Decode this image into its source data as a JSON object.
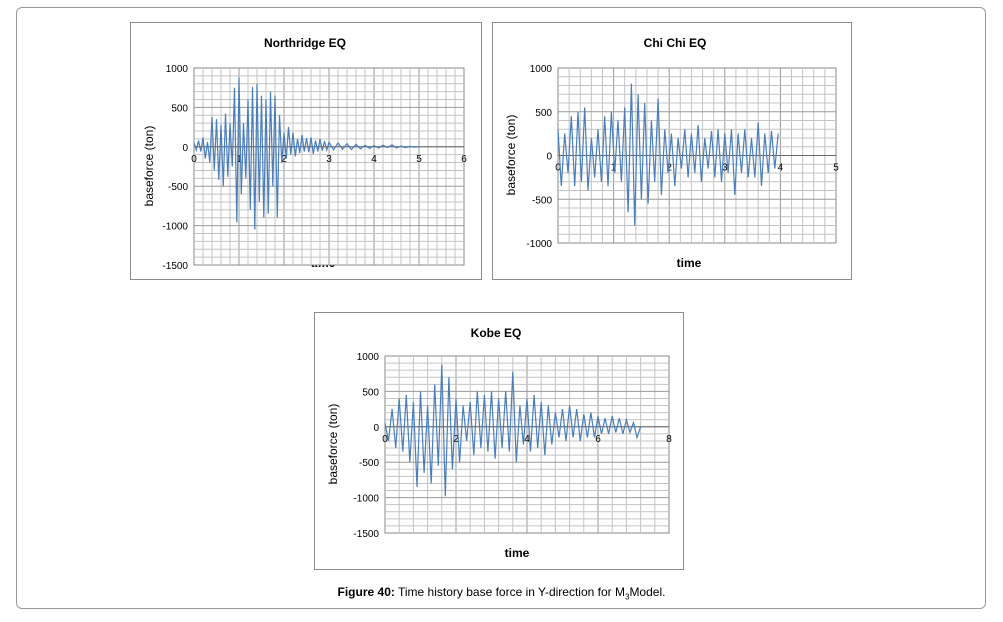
{
  "chart_data": [
    {
      "type": "line",
      "title": "Northridge EQ",
      "xlabel": "time",
      "ylabel": "baseforce (ton)",
      "xlim": [
        0,
        6
      ],
      "ylim": [
        -1500,
        1000
      ],
      "xticks": [
        0,
        1,
        2,
        3,
        4,
        5,
        6
      ],
      "yticks": [
        1000,
        500,
        0,
        -500,
        -1000,
        -1500
      ],
      "grid": true,
      "color": "#4a7ebb",
      "series": [
        {
          "x": [
            0.0,
            0.05,
            0.1,
            0.15,
            0.2,
            0.25,
            0.3,
            0.35,
            0.4,
            0.45,
            0.5,
            0.55,
            0.6,
            0.65,
            0.7,
            0.75,
            0.8,
            0.85,
            0.9,
            0.95,
            1.0,
            1.05,
            1.1,
            1.15,
            1.2,
            1.25,
            1.3,
            1.35,
            1.4,
            1.45,
            1.5,
            1.55,
            1.6,
            1.65,
            1.7,
            1.75,
            1.8,
            1.85,
            1.9,
            1.95,
            2.0,
            2.05,
            2.1,
            2.15,
            2.2,
            2.25,
            2.3,
            2.35,
            2.4,
            2.45,
            2.5,
            2.55,
            2.6,
            2.65,
            2.7,
            2.75,
            2.8,
            2.85,
            2.9,
            2.95,
            3.0,
            3.1,
            3.2,
            3.3,
            3.4,
            3.5,
            3.6,
            3.7,
            3.8,
            3.9,
            4.0,
            4.1,
            4.2,
            4.3,
            4.4,
            4.5,
            4.6,
            4.7,
            4.8,
            4.9,
            5.0
          ],
          "values": [
            50,
            -40,
            80,
            -60,
            120,
            -150,
            60,
            -200,
            380,
            -300,
            350,
            -420,
            280,
            -500,
            420,
            -380,
            300,
            -250,
            750,
            -960,
            880,
            -600,
            300,
            -400,
            600,
            -800,
            760,
            -1050,
            800,
            -700,
            650,
            -900,
            600,
            -850,
            700,
            -500,
            650,
            -900,
            400,
            -200,
            180,
            -150,
            250,
            -100,
            180,
            -120,
            100,
            -80,
            150,
            -60,
            110,
            -70,
            120,
            -90,
            80,
            -60,
            100,
            -50,
            70,
            -40,
            60,
            -40,
            50,
            -30,
            40,
            -35,
            30,
            -25,
            20,
            -20,
            15,
            -15,
            20,
            -10,
            25,
            -15,
            10,
            -10,
            5,
            -5,
            0
          ]
        }
      ]
    },
    {
      "type": "line",
      "title": "Chi Chi EQ",
      "xlabel": "time",
      "ylabel": "baseforce (ton)",
      "xlim": [
        0,
        5
      ],
      "ylim": [
        -1000,
        1000
      ],
      "xticks": [
        0,
        1,
        2,
        3,
        4,
        5
      ],
      "yticks": [
        1000,
        500,
        0,
        -500,
        -1000
      ],
      "grid": true,
      "color": "#4a7ebb",
      "series": [
        {
          "x": [
            0.0,
            0.06,
            0.12,
            0.18,
            0.24,
            0.3,
            0.36,
            0.42,
            0.48,
            0.54,
            0.6,
            0.66,
            0.72,
            0.78,
            0.84,
            0.9,
            0.96,
            1.02,
            1.08,
            1.14,
            1.2,
            1.26,
            1.32,
            1.38,
            1.44,
            1.5,
            1.56,
            1.62,
            1.68,
            1.74,
            1.8,
            1.86,
            1.92,
            1.98,
            2.04,
            2.1,
            2.16,
            2.22,
            2.28,
            2.34,
            2.4,
            2.46,
            2.52,
            2.58,
            2.64,
            2.7,
            2.76,
            2.82,
            2.88,
            2.94,
            3.0,
            3.06,
            3.12,
            3.18,
            3.24,
            3.3,
            3.36,
            3.42,
            3.48,
            3.54,
            3.6,
            3.66,
            3.72,
            3.78,
            3.84,
            3.9,
            3.96
          ],
          "values": [
            300,
            -350,
            250,
            -200,
            450,
            -350,
            500,
            -300,
            550,
            -400,
            200,
            -250,
            300,
            -300,
            450,
            -350,
            500,
            -200,
            400,
            -300,
            550,
            -650,
            820,
            -800,
            700,
            -500,
            600,
            -550,
            400,
            -300,
            650,
            -450,
            300,
            -200,
            250,
            -350,
            200,
            -150,
            300,
            -250,
            250,
            -200,
            350,
            -300,
            200,
            -150,
            280,
            -250,
            300,
            -300,
            250,
            -200,
            300,
            -450,
            250,
            -200,
            300,
            -250,
            200,
            -250,
            380,
            -350,
            250,
            -200,
            280,
            -150,
            250
          ]
        }
      ]
    },
    {
      "type": "line",
      "title": "Kobe EQ",
      "xlabel": "time",
      "ylabel": "baseforce (ton)",
      "xlim": [
        0,
        8
      ],
      "ylim": [
        -1500,
        1000
      ],
      "xticks": [
        0,
        2,
        4,
        6,
        8
      ],
      "yticks": [
        1000,
        500,
        0,
        -500,
        -1000,
        -1500
      ],
      "grid": true,
      "color": "#4a7ebb",
      "series": [
        {
          "x": [
            0.0,
            0.1,
            0.2,
            0.3,
            0.4,
            0.5,
            0.6,
            0.7,
            0.8,
            0.9,
            1.0,
            1.1,
            1.2,
            1.3,
            1.4,
            1.5,
            1.6,
            1.7,
            1.8,
            1.9,
            2.0,
            2.1,
            2.2,
            2.3,
            2.4,
            2.5,
            2.6,
            2.7,
            2.8,
            2.9,
            3.0,
            3.1,
            3.2,
            3.3,
            3.4,
            3.5,
            3.6,
            3.7,
            3.8,
            3.9,
            4.0,
            4.1,
            4.2,
            4.3,
            4.4,
            4.5,
            4.6,
            4.7,
            4.8,
            4.9,
            5.0,
            5.1,
            5.2,
            5.3,
            5.4,
            5.5,
            5.6,
            5.7,
            5.8,
            5.9,
            6.0,
            6.1,
            6.2,
            6.3,
            6.4,
            6.5,
            6.6,
            6.7,
            6.8,
            6.9,
            7.0,
            7.1,
            7.2
          ],
          "values": [
            50,
            -200,
            250,
            -300,
            400,
            -350,
            450,
            -500,
            350,
            -850,
            500,
            -650,
            300,
            -800,
            600,
            -550,
            880,
            -980,
            700,
            -600,
            400,
            -500,
            300,
            -200,
            350,
            -400,
            500,
            -300,
            450,
            -350,
            500,
            -450,
            400,
            -300,
            500,
            -350,
            780,
            -500,
            300,
            -250,
            400,
            -350,
            450,
            -300,
            350,
            -400,
            300,
            -250,
            200,
            -150,
            250,
            -200,
            300,
            -150,
            250,
            -200,
            180,
            -150,
            200,
            -150,
            150,
            -100,
            120,
            -100,
            150,
            -80,
            120,
            -100,
            100,
            -80,
            60,
            -150,
            0
          ]
        }
      ]
    }
  ],
  "caption": {
    "label": "Figure 40:",
    "text_before_sub": "Time history base force in Y-direction for M",
    "sub": "3",
    "text_after_sub": "Model."
  }
}
